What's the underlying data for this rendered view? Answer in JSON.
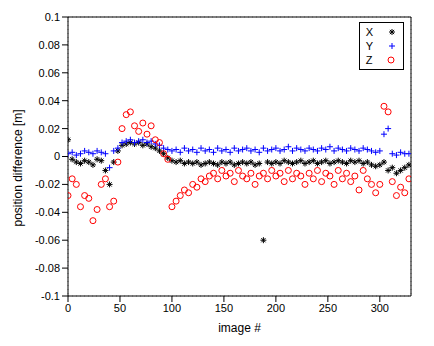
{
  "chart_data": {
    "type": "scatter",
    "x_label": "image #",
    "y_label": "position difference [m]",
    "xlim": [
      0,
      330
    ],
    "xticks": [
      0,
      50,
      100,
      150,
      200,
      250,
      300
    ],
    "ylim": [
      -0.1,
      0.1
    ],
    "yticks": [
      -0.1,
      -0.08,
      -0.06,
      -0.04,
      -0.02,
      0,
      0.02,
      0.04,
      0.06,
      0.08,
      0.1
    ],
    "grid": true,
    "legend": "top-right",
    "x": [
      0,
      4,
      8,
      12,
      16,
      20,
      24,
      28,
      32,
      36,
      40,
      44,
      48,
      52,
      56,
      60,
      64,
      68,
      72,
      76,
      80,
      84,
      88,
      92,
      96,
      100,
      104,
      108,
      112,
      116,
      120,
      124,
      128,
      132,
      136,
      140,
      144,
      148,
      152,
      156,
      160,
      164,
      168,
      172,
      176,
      180,
      184,
      188,
      192,
      196,
      200,
      204,
      208,
      212,
      216,
      220,
      224,
      228,
      232,
      236,
      240,
      244,
      248,
      252,
      256,
      260,
      264,
      268,
      272,
      276,
      280,
      284,
      288,
      292,
      296,
      300,
      304,
      308,
      312,
      316,
      320,
      324,
      328
    ],
    "series": [
      {
        "name": "X",
        "color": "#000000",
        "marker": "asterisk",
        "values": [
          0.012,
          -0.002,
          -0.004,
          -0.005,
          -0.003,
          -0.004,
          -0.006,
          -0.002,
          -0.003,
          -0.01,
          -0.02,
          -0.004,
          0.004,
          0.008,
          0.009,
          0.01,
          0.009,
          0.01,
          0.008,
          0.009,
          0.007,
          0.006,
          0.004,
          0.002,
          -0.001,
          -0.003,
          -0.004,
          -0.003,
          -0.005,
          -0.004,
          -0.005,
          -0.004,
          -0.006,
          -0.005,
          -0.004,
          -0.005,
          -0.006,
          -0.004,
          -0.005,
          -0.004,
          -0.006,
          -0.005,
          -0.004,
          -0.005,
          -0.004,
          -0.006,
          -0.005,
          -0.06,
          -0.004,
          -0.005,
          -0.004,
          -0.005,
          -0.003,
          -0.004,
          -0.005,
          -0.004,
          -0.003,
          -0.005,
          -0.004,
          -0.003,
          -0.005,
          -0.004,
          -0.003,
          -0.005,
          -0.004,
          -0.003,
          -0.004,
          -0.005,
          -0.003,
          -0.004,
          -0.003,
          -0.005,
          -0.004,
          -0.006,
          -0.007,
          -0.006,
          -0.004,
          -0.01,
          -0.008,
          -0.012,
          -0.01,
          -0.008,
          -0.006
        ]
      },
      {
        "name": "Y",
        "color": "#0000ff",
        "marker": "plus",
        "values": [
          0.002,
          0.003,
          0.001,
          0.002,
          0.004,
          0.003,
          0.002,
          0.004,
          0.003,
          0.002,
          -0.008,
          0.004,
          0.006,
          0.01,
          0.011,
          0.012,
          0.01,
          0.011,
          0.012,
          0.01,
          0.011,
          0.009,
          0.008,
          0.006,
          0.005,
          0.004,
          0.005,
          0.003,
          0.006,
          0.004,
          0.005,
          0.003,
          0.006,
          0.004,
          0.005,
          0.003,
          0.006,
          0.004,
          0.005,
          0.003,
          0.006,
          0.004,
          0.005,
          0.006,
          0.004,
          0.005,
          0.003,
          0.006,
          0.004,
          0.005,
          0.006,
          0.004,
          0.005,
          0.007,
          0.004,
          0.006,
          0.005,
          0.004,
          0.006,
          0.005,
          0.004,
          0.006,
          0.005,
          0.007,
          0.004,
          0.006,
          0.005,
          0.004,
          0.006,
          0.005,
          0.004,
          0.006,
          0.005,
          0.004,
          0.003,
          0.004,
          0.016,
          0.02,
          0.002,
          0.001,
          0.003,
          0.002,
          0.002
        ]
      },
      {
        "name": "Z",
        "color": "#ff0000",
        "marker": "circle",
        "values": [
          -0.028,
          -0.016,
          -0.02,
          -0.036,
          -0.028,
          -0.03,
          -0.046,
          -0.038,
          -0.02,
          -0.016,
          -0.036,
          -0.032,
          -0.004,
          0.02,
          0.03,
          0.032,
          0.022,
          0.018,
          0.024,
          0.016,
          0.022,
          0.012,
          0.01,
          0.002,
          -0.002,
          -0.036,
          -0.032,
          -0.028,
          -0.024,
          -0.026,
          -0.02,
          -0.022,
          -0.016,
          -0.018,
          -0.014,
          -0.012,
          -0.016,
          -0.01,
          -0.014,
          -0.012,
          -0.018,
          -0.01,
          -0.014,
          -0.016,
          -0.012,
          -0.02,
          -0.014,
          -0.012,
          -0.016,
          -0.01,
          -0.014,
          -0.012,
          -0.018,
          -0.01,
          -0.016,
          -0.012,
          -0.014,
          -0.02,
          -0.012,
          -0.016,
          -0.01,
          -0.018,
          -0.012,
          -0.014,
          -0.02,
          -0.01,
          -0.016,
          -0.012,
          -0.018,
          -0.014,
          -0.024,
          -0.01,
          -0.016,
          -0.02,
          -0.026,
          -0.02,
          0.036,
          0.032,
          -0.018,
          -0.028,
          -0.022,
          -0.026,
          -0.016
        ]
      }
    ]
  }
}
